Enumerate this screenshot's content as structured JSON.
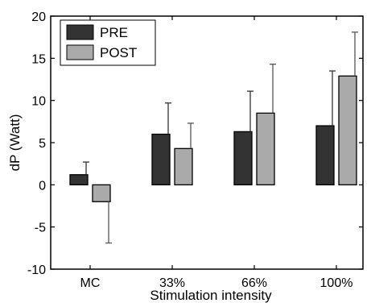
{
  "chart_data": {
    "type": "bar",
    "title": "",
    "xlabel": "Stimulation intensity",
    "ylabel": "dP (Watt)",
    "categories": [
      "MC",
      "33%",
      "66%",
      "100%"
    ],
    "ylim": [
      -10,
      20
    ],
    "yticks": [
      -10,
      -5,
      0,
      5,
      10,
      15,
      20
    ],
    "yticklabels": [
      "-10",
      "-5",
      "0",
      "5",
      "10",
      "15",
      "20"
    ],
    "grid": false,
    "legend_position": "top-left",
    "series": [
      {
        "name": "PRE",
        "color": "#333333",
        "values": [
          1.2,
          6.0,
          6.3,
          7.0
        ],
        "error": [
          1.5,
          3.7,
          4.8,
          6.5
        ]
      },
      {
        "name": "POST",
        "color": "#aaaaaa",
        "values": [
          -2.0,
          4.3,
          8.5,
          12.9
        ],
        "error": [
          4.9,
          3.0,
          5.8,
          5.2
        ]
      }
    ]
  }
}
